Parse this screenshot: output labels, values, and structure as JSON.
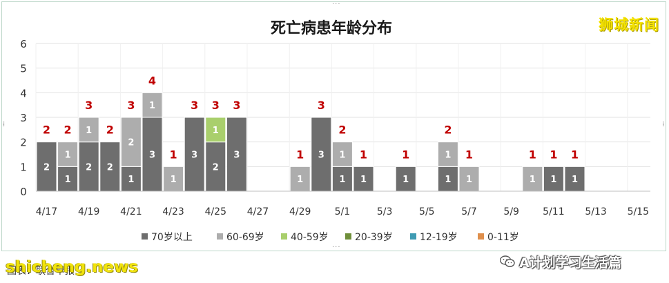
{
  "brand": "狮城新闻",
  "caption": {
    "watermark": "shicheng.news",
    "text": "图表：联合早报",
    "wechat_account": "A计划学习生活篇"
  },
  "chart_data": {
    "type": "bar",
    "stacked": true,
    "title": "死亡病患年龄分布",
    "xlabel": "",
    "ylabel": "",
    "ylim": [
      0,
      6
    ],
    "yticks": [
      "0",
      "1",
      "2",
      "3",
      "4",
      "5",
      "6"
    ],
    "grid": true,
    "legend_position": "bottom",
    "categories": [
      "4/17",
      "4/18",
      "4/19",
      "4/20",
      "4/21",
      "4/22",
      "4/23",
      "4/24",
      "4/25",
      "4/26",
      "4/27",
      "4/28",
      "4/29",
      "4/30",
      "5/1",
      "5/2",
      "5/3",
      "5/4",
      "5/5",
      "5/6",
      "5/7",
      "5/8",
      "5/9",
      "5/10",
      "5/11",
      "5/12",
      "5/13",
      "5/14",
      "5/15"
    ],
    "tick_labels": [
      "4/17",
      "4/19",
      "4/21",
      "4/23",
      "4/25",
      "4/27",
      "4/29",
      "5/1",
      "5/3",
      "5/5",
      "5/7",
      "5/9",
      "5/11",
      "5/13",
      "5/15"
    ],
    "series": [
      {
        "name": "70岁以上",
        "color": "#6e6e6e",
        "values": [
          2,
          1,
          2,
          2,
          1,
          3,
          0,
          3,
          2,
          3,
          0,
          0,
          0,
          3,
          1,
          1,
          0,
          1,
          0,
          1,
          0,
          0,
          0,
          0,
          1,
          1,
          0,
          0,
          0
        ]
      },
      {
        "name": "60-69岁",
        "color": "#adadad",
        "values": [
          0,
          1,
          1,
          0,
          2,
          1,
          1,
          0,
          0,
          0,
          0,
          0,
          1,
          0,
          1,
          0,
          0,
          0,
          0,
          1,
          1,
          0,
          0,
          1,
          0,
          0,
          0,
          0,
          0
        ]
      },
      {
        "name": "40-59岁",
        "color": "#a9cf6c",
        "values": [
          0,
          0,
          0,
          0,
          0,
          0,
          0,
          0,
          1,
          0,
          0,
          0,
          0,
          0,
          0,
          0,
          0,
          0,
          0,
          0,
          0,
          0,
          0,
          0,
          0,
          0,
          0,
          0,
          0
        ]
      },
      {
        "name": "20-39岁",
        "color": "#6f8f3a",
        "values": [
          0,
          0,
          0,
          0,
          0,
          0,
          0,
          0,
          0,
          0,
          0,
          0,
          0,
          0,
          0,
          0,
          0,
          0,
          0,
          0,
          0,
          0,
          0,
          0,
          0,
          0,
          0,
          0,
          0
        ]
      },
      {
        "name": "12-19岁",
        "color": "#3f9bb3",
        "values": [
          0,
          0,
          0,
          0,
          0,
          0,
          0,
          0,
          0,
          0,
          0,
          0,
          0,
          0,
          0,
          0,
          0,
          0,
          0,
          0,
          0,
          0,
          0,
          0,
          0,
          0,
          0,
          0,
          0
        ]
      },
      {
        "name": "0-11岁",
        "color": "#df8f4c",
        "values": [
          0,
          0,
          0,
          0,
          0,
          0,
          0,
          0,
          0,
          0,
          0,
          0,
          0,
          0,
          0,
          0,
          0,
          0,
          0,
          0,
          0,
          0,
          0,
          0,
          0,
          0,
          0,
          0,
          0
        ]
      }
    ],
    "totals": [
      2,
      2,
      3,
      2,
      3,
      4,
      1,
      3,
      3,
      3,
      0,
      0,
      1,
      3,
      2,
      1,
      0,
      1,
      0,
      2,
      1,
      0,
      0,
      1,
      1,
      1,
      0,
      0,
      0
    ],
    "total_label_color": "#c00000",
    "segment_label_color": "#ffffff"
  }
}
